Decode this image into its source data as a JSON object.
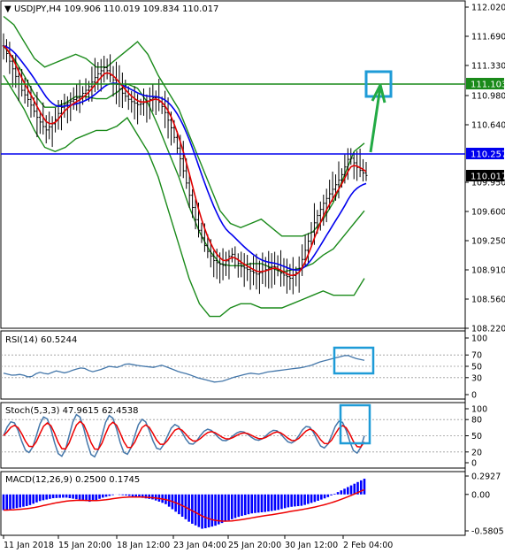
{
  "window": {
    "symbol_line": "USDJPY,H4  109.906 110.019 109.834 110.017"
  },
  "colors": {
    "price_bar": "#000000",
    "bollinger": "#1a8a1a",
    "ma_fast": "#e00000",
    "ma_slow": "#0000ee",
    "hline_green": "#1a8a1a",
    "hline_blue": "#0000ee",
    "highlight_box": "#1e9bd7",
    "arrow": "#22aa44",
    "rsi_line": "#4477aa",
    "stoch_main": "#4477aa",
    "stoch_signal": "#ee0000",
    "macd_hist": "#0000ff",
    "macd_signal": "#ee0000",
    "price_tag_blue": "#0000ee",
    "price_tag_green": "#1a8a1a"
  },
  "price_pane": {
    "y_ticks": [
      "112.020",
      "111.690",
      "111.330",
      "110.980",
      "110.640",
      "110.257",
      "109.950",
      "109.600",
      "109.250",
      "108.910",
      "108.560",
      "108.220"
    ],
    "tag_blue": "110.257",
    "tag_green": "111.103",
    "tag_last": "110.017"
  },
  "rsi_pane": {
    "label": "RSI(14) 60.5244",
    "y_ticks": [
      "100",
      "70",
      "50",
      "30",
      "0"
    ]
  },
  "stoch_pane": {
    "label": "Stoch(5,3,3) 47.9615 62.4538",
    "y_ticks": [
      "100",
      "80",
      "50",
      "20",
      "0"
    ]
  },
  "macd_pane": {
    "label": "MACD(12,26,9) 0.2500 0.1745",
    "y_ticks": [
      "0.2927",
      "0.00",
      "-0.5805"
    ]
  },
  "x_axis": {
    "labels": [
      "11 Jan 2018",
      "15 Jan 20:00",
      "18 Jan 12:00",
      "23 Jan 04:00",
      "25 Jan 20:00",
      "30 Jan 12:00",
      "2 Feb 04:00"
    ]
  },
  "chart_data": {
    "type": "line",
    "title": "USDJPY,H4",
    "x_labels": [
      "11 Jan 2018",
      "15 Jan 20:00",
      "18 Jan 12:00",
      "23 Jan 04:00",
      "25 Jan 20:00",
      "30 Jan 12:00",
      "2 Feb 04:00"
    ],
    "price": {
      "ylim": [
        108.22,
        112.02
      ],
      "horizontal_levels": [
        111.103,
        110.257
      ],
      "last_bar": {
        "open": 109.906,
        "high": 110.019,
        "low": 109.834,
        "close": 110.017
      },
      "close_path": [
        111.55,
        111.3,
        111.05,
        110.9,
        110.7,
        110.55,
        110.65,
        110.85,
        110.9,
        110.95,
        111.05,
        111.2,
        111.3,
        111.15,
        111.0,
        110.9,
        110.85,
        110.9,
        110.95,
        110.8,
        110.55,
        110.2,
        109.8,
        109.4,
        109.15,
        109.0,
        108.95,
        109.1,
        108.95,
        108.9,
        108.85,
        108.9,
        108.95,
        108.85,
        108.8,
        108.9,
        109.2,
        109.5,
        109.7,
        109.85,
        110.0,
        110.25,
        110.1,
        110.017
      ],
      "bollinger_upper": [
        111.9,
        111.8,
        111.6,
        111.4,
        111.3,
        111.35,
        111.4,
        111.45,
        111.4,
        111.3,
        111.3,
        111.4,
        111.5,
        111.6,
        111.45,
        111.2,
        111.0,
        110.8,
        110.5,
        110.2,
        109.9,
        109.6,
        109.45,
        109.4,
        109.45,
        109.5,
        109.4,
        109.3,
        109.3,
        109.3,
        109.35,
        109.5,
        109.7,
        110.0,
        110.3,
        110.4
      ],
      "bollinger_lower": [
        111.2,
        111.0,
        110.8,
        110.55,
        110.35,
        110.3,
        110.35,
        110.45,
        110.5,
        110.55,
        110.55,
        110.6,
        110.7,
        110.5,
        110.3,
        110.0,
        109.6,
        109.2,
        108.8,
        108.5,
        108.35,
        108.35,
        108.45,
        108.5,
        108.5,
        108.45,
        108.45,
        108.45,
        108.5,
        108.55,
        108.6,
        108.65,
        108.6,
        108.6,
        108.6,
        108.8
      ]
    },
    "rsi": {
      "period": 14,
      "value": 60.5244,
      "ylim": [
        0,
        100
      ],
      "levels": [
        70,
        50,
        30
      ]
    },
    "stochastic": {
      "params": [
        5,
        3,
        3
      ],
      "main": 47.9615,
      "signal": 62.4538,
      "ylim": [
        0,
        100
      ],
      "levels": [
        80,
        50,
        20
      ]
    },
    "macd": {
      "params": [
        12,
        26,
        9
      ],
      "main": 0.25,
      "signal": 0.1745,
      "ylim": [
        -0.5805,
        0.2927
      ]
    }
  }
}
